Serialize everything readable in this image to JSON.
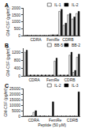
{
  "chart_data": [
    {
      "type": "bar",
      "title": "A",
      "y_label": "GM-CSF (pg/ml)",
      "categories": [
        null,
        null,
        null,
        null,
        null,
        "CDRA",
        null,
        null,
        null,
        null,
        null,
        null,
        null,
        "FemRe",
        null,
        null,
        null,
        null,
        null,
        null,
        "CDRB",
        null,
        null,
        null,
        null,
        null
      ],
      "series": [
        {
          "name": "IL-1",
          "color": "white",
          "values": [
            20,
            null,
            20,
            null,
            20,
            null,
            20,
            null,
            20,
            null,
            20,
            null,
            50,
            null,
            50,
            null,
            1750,
            null,
            750,
            null,
            1500,
            null,
            1200,
            null,
            1600,
            null
          ]
        },
        {
          "name": "IL-2",
          "color": "black",
          "values": [
            null,
            25,
            null,
            20,
            null,
            20,
            null,
            20,
            null,
            20,
            null,
            20,
            null,
            60,
            null,
            60,
            null,
            1900,
            null,
            900,
            null,
            1600,
            null,
            1350,
            null,
            1750
          ]
        }
      ],
      "ylim": [
        0,
        2000
      ],
      "yticks": [
        0,
        500,
        1000,
        1500,
        2000
      ],
      "grid": false,
      "legend": "upper right"
    },
    {
      "type": "bar",
      "title": "B",
      "y_label": "GM-CSF (pg/ml)",
      "categories": [
        null,
        null,
        null,
        null,
        null,
        "CDRA",
        null,
        null,
        null,
        null,
        null,
        null,
        null,
        null,
        null,
        "FemRe",
        null,
        null,
        null,
        null,
        null,
        null,
        null,
        null,
        "CDRB",
        null,
        null,
        null,
        null,
        null
      ],
      "series": [
        {
          "name": "BB-5",
          "color": "white",
          "values": [
            1200,
            null,
            40,
            null,
            40,
            null,
            40,
            null,
            40,
            null,
            40,
            null,
            40,
            null,
            40,
            null,
            750,
            null,
            40,
            null,
            40,
            null,
            40,
            null,
            1050,
            null,
            180,
            null,
            950,
            null
          ]
        },
        {
          "name": "BB-2",
          "color": "black",
          "values": [
            null,
            1300,
            null,
            50,
            null,
            50,
            null,
            50,
            null,
            50,
            null,
            50,
            null,
            50,
            null,
            50,
            null,
            900,
            null,
            50,
            null,
            50,
            null,
            50,
            null,
            1200,
            null,
            280,
            null,
            1100
          ]
        }
      ],
      "ylim": [
        0,
        1400
      ],
      "yticks": [
        0,
        400,
        800,
        1200
      ],
      "grid": false,
      "legend": "upper right"
    },
    {
      "type": "bar",
      "title": "C",
      "y_label": "GM-CSF (pg/ml)",
      "x_label": "Peptide (50 μM)",
      "categories": [
        null,
        null,
        null,
        null,
        "CDRA",
        null,
        null,
        null,
        null,
        null,
        null,
        null,
        null,
        null,
        "FemRe",
        null,
        null,
        null,
        null,
        null,
        null,
        null,
        "CDRB",
        null,
        null,
        null
      ],
      "series": [
        {
          "name": "IL-2",
          "color": "white",
          "values": [
            100,
            null,
            200,
            null,
            3500,
            null,
            200,
            null,
            200,
            null,
            100,
            null,
            100,
            null,
            100,
            null,
            100,
            null,
            100,
            null,
            100,
            null,
            100,
            null,
            100,
            null
          ]
        },
        {
          "name": "IL-3",
          "color": "black",
          "values": [
            null,
            150,
            null,
            300,
            null,
            5000,
            null,
            300,
            null,
            300,
            null,
            200,
            null,
            13000,
            null,
            200,
            null,
            200,
            null,
            200,
            null,
            200,
            null,
            200,
            null,
            22000
          ]
        }
      ],
      "ylim": [
        0,
        25000
      ],
      "yticks": [
        0,
        5000,
        10000,
        15000,
        20000,
        25000
      ],
      "grid": false,
      "legend": "upper right"
    }
  ]
}
